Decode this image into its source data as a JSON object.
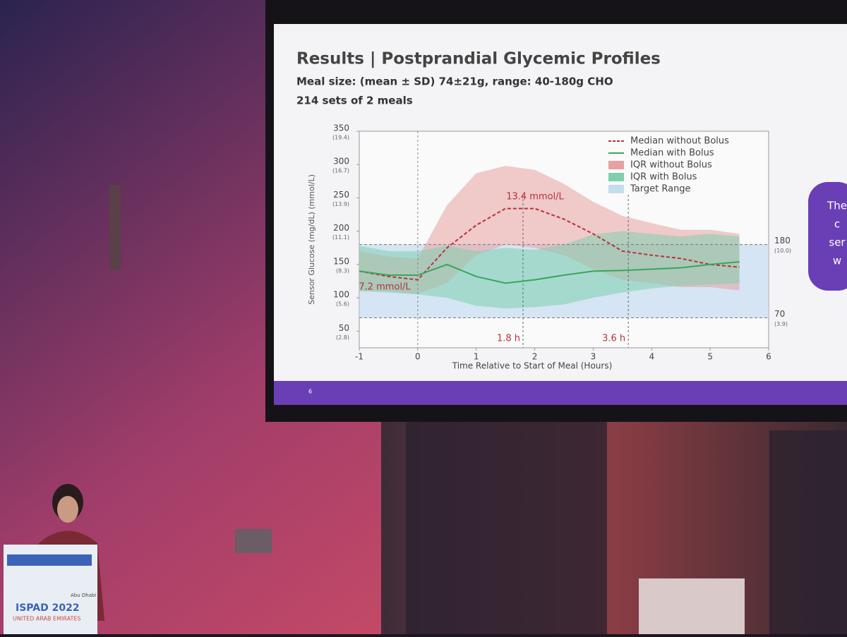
{
  "slide": {
    "title": "Results | Postprandial Glycemic Profiles",
    "subtitle_1": "Meal size: (mean ± SD) 74±21g, range: 40-180g CHO",
    "subtitle_2": "214 sets of 2 meals",
    "page_number": "6",
    "side_box": [
      "The",
      "c",
      "ser",
      "w"
    ]
  },
  "podium": {
    "city": "Abu Dhabi",
    "event": "ISPAD 2022",
    "country": "UNITED ARAB EMIRATES"
  },
  "chart_data": {
    "type": "line",
    "x_label": "Time Relative to Start of Meal (Hours)",
    "y_label": "Sensor Glucose (mg/dL) (mmol/L)",
    "x": [
      -1,
      -0.5,
      0,
      0.5,
      1,
      1.5,
      2,
      2.5,
      3,
      3.5,
      4,
      4.5,
      5,
      5.5,
      6
    ],
    "xlim": [
      -1,
      6
    ],
    "xticks": [
      -1,
      0,
      1,
      2,
      3,
      4,
      5,
      6
    ],
    "ylim": [
      25,
      350
    ],
    "yticks": [
      50,
      100,
      150,
      200,
      250,
      300,
      350
    ],
    "ytick_mmol_labels": [
      "(2.8)",
      "(5.6)",
      "(8.3)",
      "(11.1)",
      "(13.9)",
      "(16.7)",
      "(19.4)"
    ],
    "y2lim": [
      25,
      350
    ],
    "y2ticks": [
      70,
      180
    ],
    "y2tick_mmol_labels": [
      "(3.9)",
      "(10.0)"
    ],
    "peak_label": "13.4 mmol/L",
    "start_label": "7.2 mmol/L",
    "markers": [
      {
        "x": 1.8,
        "label": "1.8 h"
      },
      {
        "x": 3.6,
        "label": "3.6 h"
      }
    ],
    "series": [
      {
        "name": "Median without Bolus",
        "color": "#b8323a",
        "style": "dashed",
        "values": [
          140,
          132,
          127,
          175,
          209,
          234,
          234,
          218,
          196,
          170,
          164,
          159,
          150,
          146,
          null
        ]
      },
      {
        "name": "Median with Bolus",
        "color": "#3aa65a",
        "style": "solid",
        "values": [
          140,
          134,
          134,
          150,
          132,
          122,
          127,
          134,
          140,
          141,
          143,
          145,
          150,
          154,
          null
        ]
      },
      {
        "name": "IQR without Bolus",
        "color": "#e8a0a0",
        "style": "band",
        "lower": [
          111,
          110,
          106,
          122,
          164,
          180,
          175,
          164,
          143,
          127,
          122,
          116,
          116,
          111,
          null
        ],
        "upper": [
          170,
          162,
          159,
          239,
          287,
          298,
          292,
          271,
          244,
          223,
          212,
          202,
          202,
          196,
          null
        ]
      },
      {
        "name": "IQR with Bolus",
        "color": "#7fcfae",
        "style": "band",
        "lower": [
          110,
          108,
          105,
          100,
          88,
          84,
          86,
          90,
          100,
          108,
          114,
          118,
          120,
          122,
          null
        ],
        "upper": [
          178,
          170,
          170,
          178,
          170,
          175,
          172,
          180,
          195,
          200,
          196,
          192,
          196,
          192,
          null
        ]
      },
      {
        "name": "Target Range",
        "color": "#c5dcef",
        "style": "range",
        "range": [
          70,
          180
        ]
      }
    ]
  }
}
